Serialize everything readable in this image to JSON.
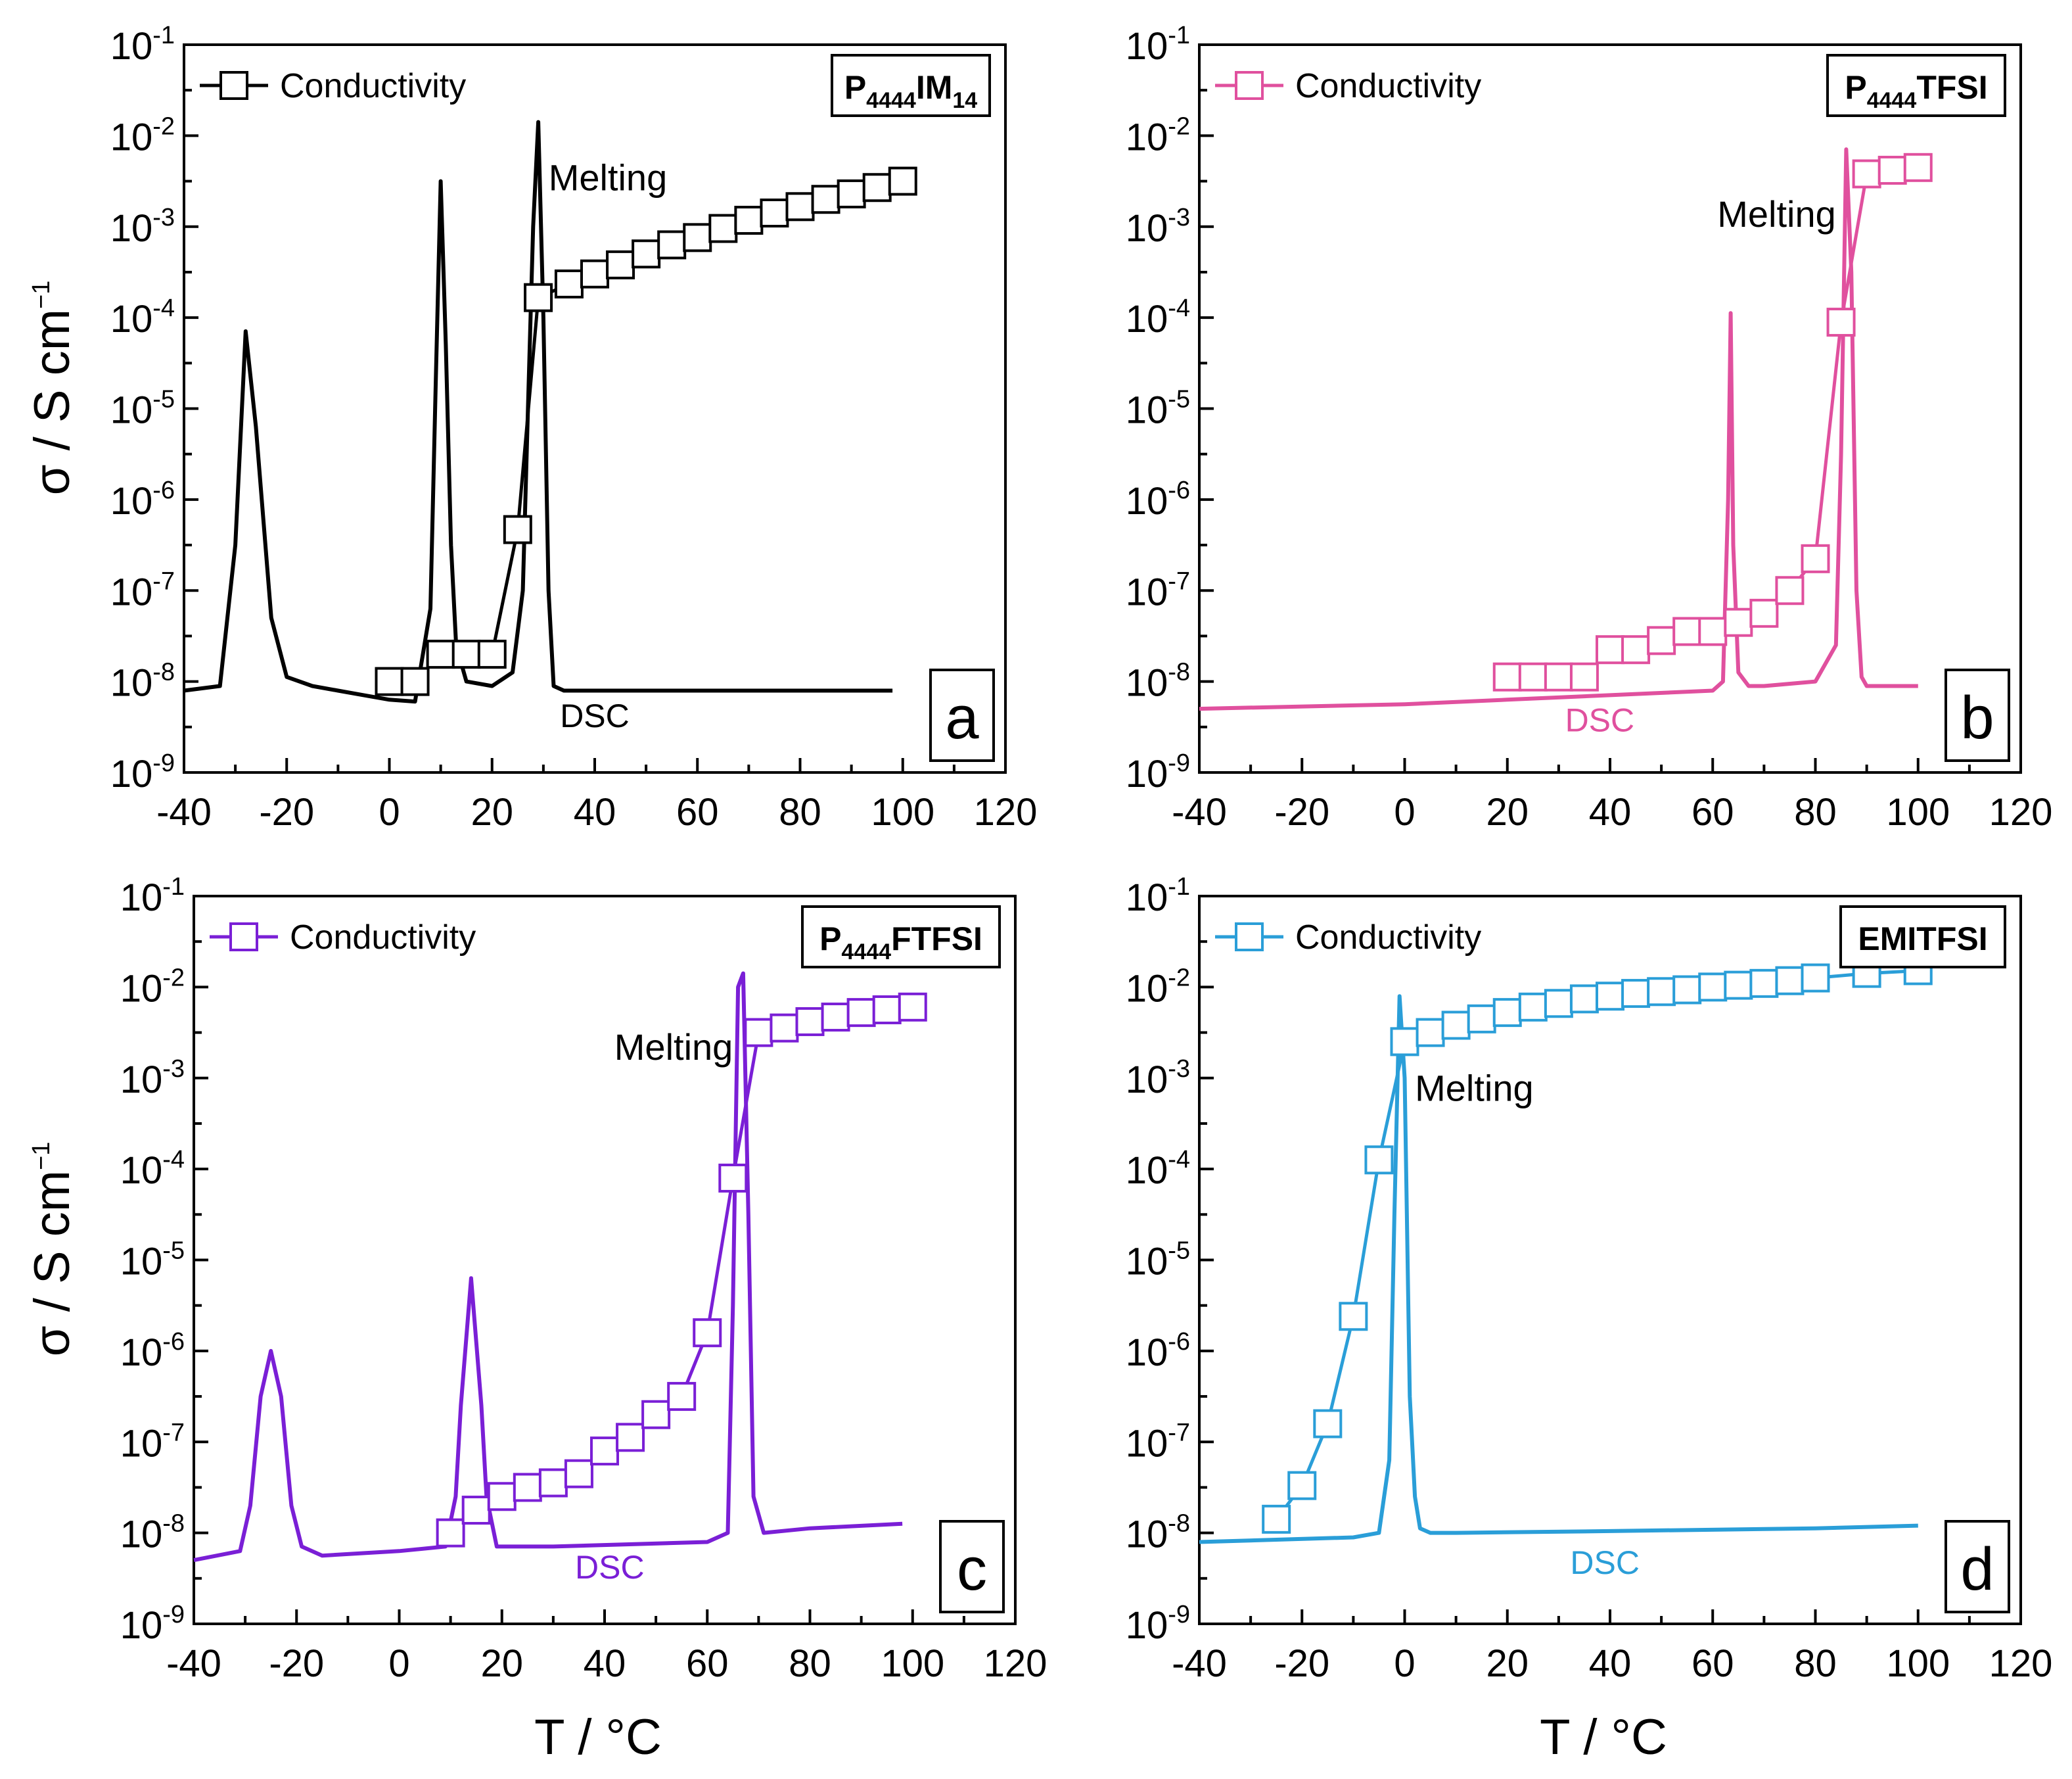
{
  "figure": {
    "x_axis_title": "T / °C",
    "y_axis_title": "σ / S cm",
    "y_axis_title_sup": "−1",
    "x_ticks": [
      "-40",
      "-20",
      "0",
      "20",
      "40",
      "60",
      "80",
      "100",
      "120"
    ],
    "y_tick_base": "10",
    "y_tick_exponents": [
      "-1",
      "-2",
      "-3",
      "-4",
      "-5",
      "-6",
      "-7",
      "-8",
      "-9"
    ]
  },
  "chart_data": [
    {
      "type": "line",
      "panel_letter": "a",
      "color": "#000000",
      "compound": {
        "main": "P",
        "sub": "4444",
        "rest": "IM",
        "sub2": "14"
      },
      "legend": "Conductivity",
      "annotations": {
        "melting": "Melting",
        "dsc": "DSC"
      },
      "xlabel": "T / °C",
      "ylabel": "σ / S cm−1",
      "xlim": [
        -40,
        120
      ],
      "ylim_log10": [
        -9,
        -1
      ],
      "y_scale": "log",
      "series": [
        {
          "name": "Conductivity",
          "marker": "open-square",
          "x": [
            0,
            5,
            10,
            15,
            20,
            25,
            29,
            35,
            40,
            45,
            50,
            55,
            60,
            65,
            70,
            75,
            80,
            85,
            90,
            95,
            100
          ],
          "log10_y": [
            -8.0,
            -8.0,
            -7.7,
            -7.7,
            -7.7,
            -6.33,
            -3.78,
            -3.63,
            -3.52,
            -3.42,
            -3.3,
            -3.2,
            -3.12,
            -3.02,
            -2.93,
            -2.85,
            -2.78,
            -2.7,
            -2.64,
            -2.57,
            -2.5
          ]
        },
        {
          "name": "DSC",
          "marker": "none",
          "x": [
            -40,
            -33,
            -30,
            -28,
            -26,
            -23,
            -20,
            -15,
            -10,
            -5,
            0,
            5,
            8,
            9,
            10,
            11,
            12,
            13,
            15,
            20,
            24,
            26,
            27,
            28,
            29,
            30,
            31,
            32,
            34,
            40,
            60,
            80,
            98
          ],
          "log10_y": [
            -8.1,
            -8.05,
            -6.5,
            -4.15,
            -5.2,
            -7.3,
            -7.95,
            -8.05,
            -8.1,
            -8.15,
            -8.2,
            -8.22,
            -7.2,
            -4.8,
            -2.5,
            -4.3,
            -6.5,
            -7.6,
            -8.0,
            -8.05,
            -7.9,
            -7.0,
            -5.0,
            -3.0,
            -1.85,
            -4.0,
            -7.0,
            -8.05,
            -8.1,
            -8.1,
            -8.1,
            -8.1,
            -8.1
          ]
        }
      ]
    },
    {
      "type": "line",
      "panel_letter": "b",
      "color": "#e0509e",
      "compound": {
        "main": "P",
        "sub": "4444",
        "rest": "TFSI",
        "sub2": ""
      },
      "legend": "Conductivity",
      "annotations": {
        "melting": "Melting",
        "dsc": "DSC"
      },
      "xlabel": "T / °C",
      "ylabel": "σ / S cm−1",
      "xlim": [
        -40,
        120
      ],
      "ylim_log10": [
        -9,
        -1
      ],
      "y_scale": "log",
      "series": [
        {
          "name": "Conductivity",
          "marker": "open-square",
          "x": [
            20,
            25,
            30,
            35,
            40,
            45,
            50,
            55,
            60,
            65,
            70,
            75,
            80,
            85,
            90,
            95,
            100
          ],
          "log10_y": [
            -7.95,
            -7.95,
            -7.95,
            -7.95,
            -7.65,
            -7.65,
            -7.55,
            -7.45,
            -7.45,
            -7.35,
            -7.25,
            -7.0,
            -6.65,
            -4.05,
            -2.42,
            -2.38,
            -2.35
          ]
        },
        {
          "name": "DSC",
          "marker": "none",
          "x": [
            -40,
            0,
            20,
            40,
            60,
            62,
            63,
            63.5,
            64,
            65,
            67,
            70,
            80,
            84,
            85,
            86,
            87,
            88,
            89,
            90,
            95,
            100
          ],
          "log10_y": [
            -8.3,
            -8.25,
            -8.2,
            -8.15,
            -8.1,
            -8.0,
            -6.0,
            -3.95,
            -6.5,
            -7.9,
            -8.05,
            -8.05,
            -8.0,
            -7.6,
            -5.5,
            -2.15,
            -3.5,
            -7.0,
            -7.95,
            -8.05,
            -8.05,
            -8.05
          ]
        }
      ]
    },
    {
      "type": "line",
      "panel_letter": "c",
      "color": "#7a1fd6",
      "compound": {
        "main": "P",
        "sub": "4444",
        "rest": "FTFSI",
        "sub2": ""
      },
      "legend": "Conductivity",
      "annotations": {
        "melting": "Melting",
        "dsc": "DSC"
      },
      "xlabel": "T / °C",
      "ylabel": "σ / S cm−1",
      "xlim": [
        -40,
        120
      ],
      "ylim_log10": [
        -9,
        -1
      ],
      "y_scale": "log",
      "series": [
        {
          "name": "Conductivity",
          "marker": "open-square",
          "x": [
            10,
            15,
            20,
            25,
            30,
            35,
            40,
            45,
            50,
            55,
            60,
            65,
            70,
            75,
            80,
            85,
            90,
            95,
            100
          ],
          "log10_y": [
            -8.0,
            -7.75,
            -7.6,
            -7.5,
            -7.45,
            -7.35,
            -7.1,
            -6.95,
            -6.7,
            -6.5,
            -5.8,
            -4.1,
            -2.5,
            -2.45,
            -2.38,
            -2.33,
            -2.28,
            -2.25,
            -2.22
          ]
        },
        {
          "name": "DSC",
          "marker": "none",
          "x": [
            -40,
            -31,
            -29,
            -27,
            -25,
            -23,
            -21,
            -19,
            -15,
            0,
            9,
            11,
            12,
            14,
            16,
            17,
            19,
            30,
            60,
            64,
            65,
            66,
            67,
            68,
            69,
            71,
            80,
            98
          ],
          "log10_y": [
            -8.3,
            -8.2,
            -7.7,
            -6.5,
            -6.0,
            -6.5,
            -7.7,
            -8.15,
            -8.25,
            -8.2,
            -8.15,
            -7.6,
            -6.6,
            -5.2,
            -6.6,
            -7.6,
            -8.15,
            -8.15,
            -8.1,
            -8.0,
            -5.5,
            -2.0,
            -1.85,
            -4.5,
            -7.6,
            -8.0,
            -7.95,
            -7.9
          ]
        }
      ]
    },
    {
      "type": "line",
      "panel_letter": "d",
      "color": "#2a9ed8",
      "compound": {
        "main": "EMITFSI",
        "sub": "",
        "rest": "",
        "sub2": ""
      },
      "legend": "Conductivity",
      "annotations": {
        "melting": "Melting",
        "dsc": "DSC"
      },
      "xlabel": "T / °C",
      "ylabel": "σ / S cm−1",
      "xlim": [
        -40,
        120
      ],
      "ylim_log10": [
        -9,
        -1
      ],
      "y_scale": "log",
      "series": [
        {
          "name": "Conductivity",
          "marker": "open-square",
          "x": [
            -25,
            -20,
            -15,
            -10,
            -5,
            0,
            5,
            10,
            15,
            20,
            25,
            30,
            35,
            40,
            45,
            50,
            55,
            60,
            65,
            70,
            75,
            80,
            90,
            100
          ],
          "log10_y": [
            -7.85,
            -7.48,
            -6.8,
            -5.62,
            -3.9,
            -2.6,
            -2.5,
            -2.42,
            -2.35,
            -2.28,
            -2.22,
            -2.18,
            -2.13,
            -2.1,
            -2.07,
            -2.05,
            -2.03,
            -2.0,
            -1.98,
            -1.96,
            -1.93,
            -1.9,
            -1.85,
            -1.82
          ]
        },
        {
          "name": "DSC",
          "marker": "none",
          "x": [
            -40,
            -10,
            -5,
            -3,
            -2,
            -1,
            0,
            1,
            2,
            3,
            5,
            10,
            40,
            80,
            100
          ],
          "log10_y": [
            -8.1,
            -8.05,
            -8.0,
            -7.2,
            -4.5,
            -2.1,
            -3.0,
            -6.5,
            -7.6,
            -7.95,
            -8.0,
            -8.0,
            -7.98,
            -7.95,
            -7.92
          ]
        }
      ]
    }
  ]
}
